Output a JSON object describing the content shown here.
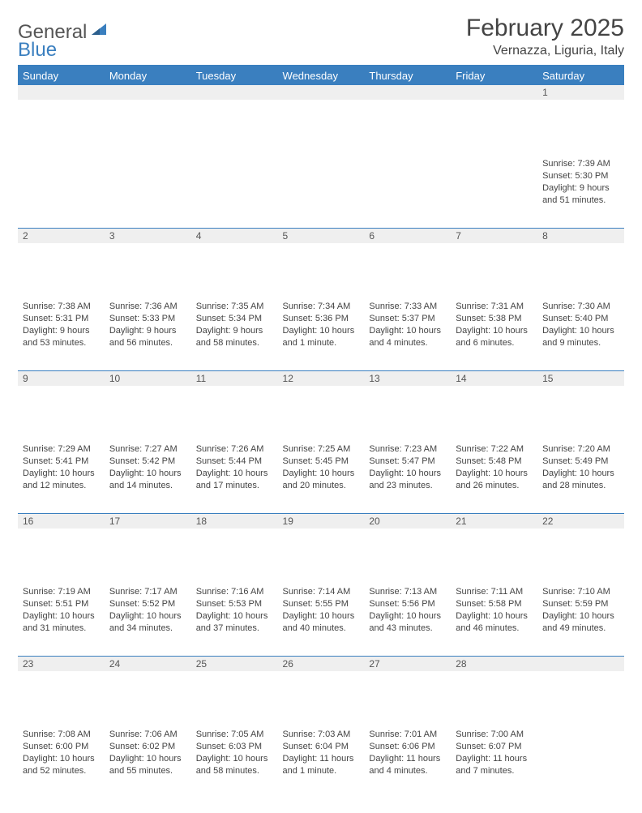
{
  "brand": {
    "part1": "General",
    "part2": "Blue"
  },
  "title": "February 2025",
  "location": "Vernazza, Liguria, Italy",
  "colors": {
    "accent": "#3a7fbf",
    "header_bg": "#3a7fbf",
    "header_text": "#ffffff",
    "daynum_bg": "#efefef",
    "body_text": "#444444"
  },
  "day_headers": [
    "Sunday",
    "Monday",
    "Tuesday",
    "Wednesday",
    "Thursday",
    "Friday",
    "Saturday"
  ],
  "weeks": [
    [
      null,
      null,
      null,
      null,
      null,
      null,
      {
        "n": "1",
        "sunrise": "7:39 AM",
        "sunset": "5:30 PM",
        "daylight": "9 hours and 51 minutes."
      }
    ],
    [
      {
        "n": "2",
        "sunrise": "7:38 AM",
        "sunset": "5:31 PM",
        "daylight": "9 hours and 53 minutes."
      },
      {
        "n": "3",
        "sunrise": "7:36 AM",
        "sunset": "5:33 PM",
        "daylight": "9 hours and 56 minutes."
      },
      {
        "n": "4",
        "sunrise": "7:35 AM",
        "sunset": "5:34 PM",
        "daylight": "9 hours and 58 minutes."
      },
      {
        "n": "5",
        "sunrise": "7:34 AM",
        "sunset": "5:36 PM",
        "daylight": "10 hours and 1 minute."
      },
      {
        "n": "6",
        "sunrise": "7:33 AM",
        "sunset": "5:37 PM",
        "daylight": "10 hours and 4 minutes."
      },
      {
        "n": "7",
        "sunrise": "7:31 AM",
        "sunset": "5:38 PM",
        "daylight": "10 hours and 6 minutes."
      },
      {
        "n": "8",
        "sunrise": "7:30 AM",
        "sunset": "5:40 PM",
        "daylight": "10 hours and 9 minutes."
      }
    ],
    [
      {
        "n": "9",
        "sunrise": "7:29 AM",
        "sunset": "5:41 PM",
        "daylight": "10 hours and 12 minutes."
      },
      {
        "n": "10",
        "sunrise": "7:27 AM",
        "sunset": "5:42 PM",
        "daylight": "10 hours and 14 minutes."
      },
      {
        "n": "11",
        "sunrise": "7:26 AM",
        "sunset": "5:44 PM",
        "daylight": "10 hours and 17 minutes."
      },
      {
        "n": "12",
        "sunrise": "7:25 AM",
        "sunset": "5:45 PM",
        "daylight": "10 hours and 20 minutes."
      },
      {
        "n": "13",
        "sunrise": "7:23 AM",
        "sunset": "5:47 PM",
        "daylight": "10 hours and 23 minutes."
      },
      {
        "n": "14",
        "sunrise": "7:22 AM",
        "sunset": "5:48 PM",
        "daylight": "10 hours and 26 minutes."
      },
      {
        "n": "15",
        "sunrise": "7:20 AM",
        "sunset": "5:49 PM",
        "daylight": "10 hours and 28 minutes."
      }
    ],
    [
      {
        "n": "16",
        "sunrise": "7:19 AM",
        "sunset": "5:51 PM",
        "daylight": "10 hours and 31 minutes."
      },
      {
        "n": "17",
        "sunrise": "7:17 AM",
        "sunset": "5:52 PM",
        "daylight": "10 hours and 34 minutes."
      },
      {
        "n": "18",
        "sunrise": "7:16 AM",
        "sunset": "5:53 PM",
        "daylight": "10 hours and 37 minutes."
      },
      {
        "n": "19",
        "sunrise": "7:14 AM",
        "sunset": "5:55 PM",
        "daylight": "10 hours and 40 minutes."
      },
      {
        "n": "20",
        "sunrise": "7:13 AM",
        "sunset": "5:56 PM",
        "daylight": "10 hours and 43 minutes."
      },
      {
        "n": "21",
        "sunrise": "7:11 AM",
        "sunset": "5:58 PM",
        "daylight": "10 hours and 46 minutes."
      },
      {
        "n": "22",
        "sunrise": "7:10 AM",
        "sunset": "5:59 PM",
        "daylight": "10 hours and 49 minutes."
      }
    ],
    [
      {
        "n": "23",
        "sunrise": "7:08 AM",
        "sunset": "6:00 PM",
        "daylight": "10 hours and 52 minutes."
      },
      {
        "n": "24",
        "sunrise": "7:06 AM",
        "sunset": "6:02 PM",
        "daylight": "10 hours and 55 minutes."
      },
      {
        "n": "25",
        "sunrise": "7:05 AM",
        "sunset": "6:03 PM",
        "daylight": "10 hours and 58 minutes."
      },
      {
        "n": "26",
        "sunrise": "7:03 AM",
        "sunset": "6:04 PM",
        "daylight": "11 hours and 1 minute."
      },
      {
        "n": "27",
        "sunrise": "7:01 AM",
        "sunset": "6:06 PM",
        "daylight": "11 hours and 4 minutes."
      },
      {
        "n": "28",
        "sunrise": "7:00 AM",
        "sunset": "6:07 PM",
        "daylight": "11 hours and 7 minutes."
      },
      null
    ]
  ],
  "labels": {
    "sunrise": "Sunrise:",
    "sunset": "Sunset:",
    "daylight": "Daylight:"
  }
}
